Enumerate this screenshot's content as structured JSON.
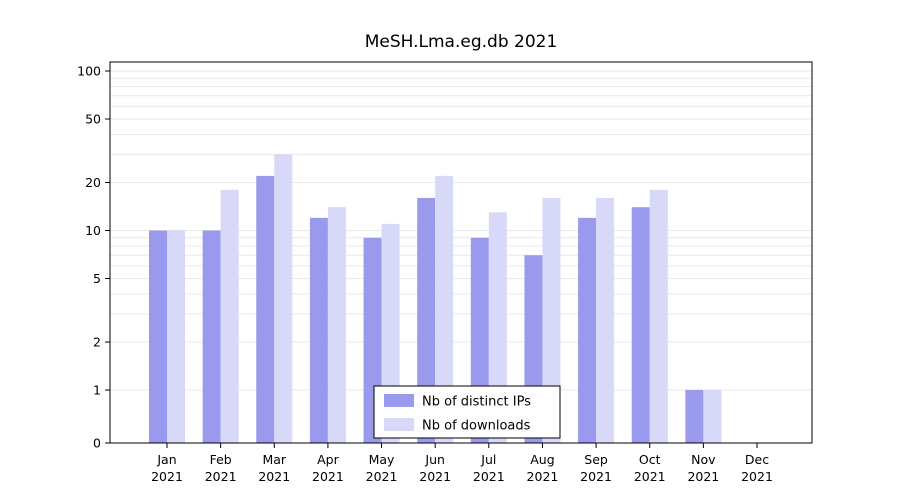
{
  "chart_data": {
    "type": "bar",
    "title": "MeSH.Lma.eg.db 2021",
    "categories": [
      "Jan",
      "Feb",
      "Mar",
      "Apr",
      "May",
      "Jun",
      "Jul",
      "Aug",
      "Sep",
      "Oct",
      "Nov",
      "Dec"
    ],
    "year_label": "2021",
    "series": [
      {
        "name": "Nb of distinct IPs",
        "color": "#9999ee",
        "values": [
          10,
          10,
          22,
          12,
          9,
          16,
          9,
          7,
          12,
          14,
          1,
          0
        ]
      },
      {
        "name": "Nb of downloads",
        "color": "#d8d8f8",
        "values": [
          10,
          18,
          30,
          14,
          11,
          22,
          13,
          16,
          16,
          18,
          1,
          0
        ]
      }
    ],
    "yscale": "symlog",
    "ylim": [
      0,
      100
    ],
    "yticks": [
      0,
      1,
      2,
      5,
      10,
      20,
      50,
      100
    ],
    "grid_values": [
      1,
      2,
      3,
      4,
      5,
      6,
      7,
      8,
      9,
      10,
      20,
      30,
      40,
      50,
      60,
      70,
      80,
      90,
      100
    ],
    "grid": true,
    "legend_position": "bottom-center"
  },
  "colors": {
    "grid": "#e9e9e9",
    "axis": "#000000",
    "background": "#ffffff",
    "legend_border": "#000000",
    "legend_bg": "#ffffff"
  }
}
